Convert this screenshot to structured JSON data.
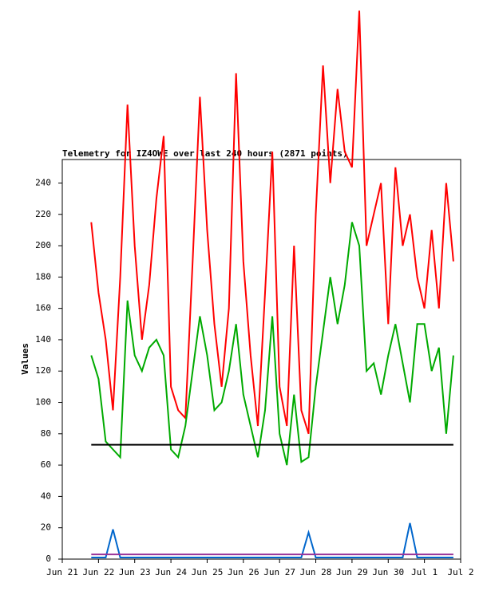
{
  "chart_data": {
    "type": "line",
    "title": "Telemetry for IZ4OWE over last 240 hours (2871 points)",
    "y_label": "Values",
    "x": [
      0.8,
      1.0,
      1.2,
      1.4,
      1.6,
      1.8,
      2.0,
      2.2,
      2.4,
      2.6,
      2.8,
      3.0,
      3.2,
      3.4,
      3.6,
      3.8,
      4.0,
      4.2,
      4.4,
      4.6,
      4.8,
      5.0,
      5.2,
      5.4,
      5.6,
      5.8,
      6.0,
      6.2,
      6.4,
      6.6,
      6.8,
      7.0,
      7.2,
      7.4,
      7.6,
      7.8,
      8.0,
      8.2,
      8.4,
      8.6,
      8.8,
      9.0,
      9.2,
      9.4,
      9.6,
      9.8,
      10.0,
      10.2,
      10.4,
      10.6,
      10.8
    ],
    "series": [
      {
        "color": "#ff0000",
        "values": [
          215,
          170,
          140,
          95,
          180,
          290,
          200,
          140,
          175,
          230,
          270,
          110,
          95,
          90,
          190,
          295,
          210,
          150,
          110,
          160,
          310,
          190,
          130,
          85,
          170,
          260,
          110,
          85,
          200,
          95,
          80,
          220,
          315,
          240,
          300,
          260,
          250,
          350,
          200,
          220,
          240,
          150,
          250,
          200,
          220,
          180,
          160,
          210,
          160,
          240,
          190
        ]
      },
      {
        "color": "#00aa00",
        "values": [
          130,
          115,
          75,
          70,
          65,
          165,
          130,
          120,
          135,
          140,
          130,
          70,
          65,
          85,
          120,
          155,
          130,
          95,
          100,
          120,
          150,
          105,
          85,
          65,
          95,
          155,
          80,
          60,
          105,
          62,
          65,
          110,
          145,
          180,
          150,
          175,
          215,
          200,
          120,
          125,
          105,
          130,
          150,
          125,
          100,
          150,
          150,
          120,
          135,
          80,
          130
        ]
      },
      {
        "color": "#000000",
        "values": [
          73,
          73,
          73,
          73,
          73,
          73,
          73,
          73,
          73,
          73,
          73,
          73,
          73,
          73,
          73,
          73,
          73,
          73,
          73,
          73,
          73,
          73,
          73,
          73,
          73,
          73,
          73,
          73,
          73,
          73,
          73,
          73,
          73,
          73,
          73,
          73,
          73,
          73,
          73,
          73,
          73,
          73,
          73,
          73,
          73,
          73,
          73,
          73,
          73,
          73,
          73
        ]
      },
      {
        "color": "#0066cc",
        "values": [
          1,
          1,
          1,
          19,
          1,
          1,
          1,
          1,
          1,
          1,
          1,
          1,
          1,
          1,
          1,
          1,
          1,
          1,
          1,
          1,
          1,
          1,
          1,
          1,
          1,
          1,
          1,
          1,
          1,
          1,
          17,
          1,
          1,
          1,
          1,
          1,
          1,
          1,
          1,
          1,
          1,
          1,
          1,
          1,
          23,
          1,
          1,
          1,
          1,
          1,
          1
        ]
      },
      {
        "color": "#993399",
        "values": [
          3,
          3,
          3,
          3,
          3,
          3,
          3,
          3,
          3,
          3,
          3,
          3,
          3,
          3,
          3,
          3,
          3,
          3,
          3,
          3,
          3,
          3,
          3,
          3,
          3,
          3,
          3,
          3,
          3,
          3,
          3,
          3,
          3,
          3,
          3,
          3,
          3,
          3,
          3,
          3,
          3,
          3,
          3,
          3,
          3,
          3,
          3,
          3,
          3,
          3,
          3
        ]
      }
    ],
    "xlim": [
      0,
      11
    ],
    "xticks": [
      {
        "value": 0,
        "label": "Jun 21"
      },
      {
        "value": 1,
        "label": "Jun 22"
      },
      {
        "value": 2,
        "label": "Jun 23"
      },
      {
        "value": 3,
        "label": "Jun 24"
      },
      {
        "value": 4,
        "label": "Jun 25"
      },
      {
        "value": 5,
        "label": "Jun 26"
      },
      {
        "value": 6,
        "label": "Jun 27"
      },
      {
        "value": 7,
        "label": "Jun 28"
      },
      {
        "value": 8,
        "label": "Jun 29"
      },
      {
        "value": 9,
        "label": "Jun 30"
      },
      {
        "value": 10,
        "label": "Jul 1"
      },
      {
        "value": 11,
        "label": "Jul 2"
      }
    ],
    "ylim": [
      0,
      255
    ],
    "yticks": [
      0,
      20,
      40,
      60,
      80,
      100,
      120,
      140,
      160,
      180,
      200,
      220,
      240
    ],
    "grid": false
  }
}
